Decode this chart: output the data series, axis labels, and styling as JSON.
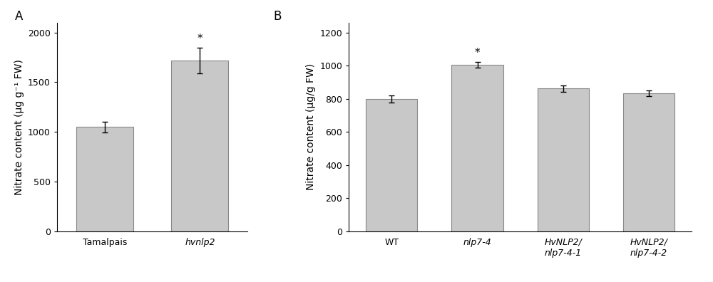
{
  "panel_A": {
    "categories": [
      "Tamalpais",
      "hvnlp2"
    ],
    "values": [
      1050,
      1720
    ],
    "errors": [
      55,
      130
    ],
    "bar_color": "#c8c8c8",
    "bar_edge_color": "#888888",
    "ylabel": "Nitrate content (μg g⁻¹ FW)",
    "ylim": [
      0,
      2100
    ],
    "yticks": [
      0,
      500,
      1000,
      1500,
      2000
    ],
    "label": "A",
    "significant": [
      false,
      true
    ],
    "italic_labels": [
      false,
      true
    ],
    "xlim": [
      -0.5,
      1.5
    ]
  },
  "panel_B": {
    "categories": [
      "WT",
      "nlp7-4",
      "HvNLP2/\nnlp7-4-1",
      "HvNLP2/\nnlp7-4-2"
    ],
    "values": [
      800,
      1005,
      862,
      832
    ],
    "errors": [
      22,
      18,
      20,
      18
    ],
    "bar_color": "#c8c8c8",
    "bar_edge_color": "#888888",
    "ylabel": "Nitrate content (μg/g FW)",
    "ylim": [
      0,
      1260
    ],
    "yticks": [
      0,
      200,
      400,
      600,
      800,
      1000,
      1200
    ],
    "label": "B",
    "significant": [
      false,
      true,
      false,
      false
    ],
    "italic_labels": [
      false,
      true,
      true,
      true
    ],
    "xlim": [
      -0.5,
      3.5
    ]
  },
  "figure_bg": "#ffffff",
  "bar_width": 0.6,
  "fontsize_label": 10,
  "fontsize_tick": 9,
  "fontsize_panel_label": 12,
  "fontsize_star": 11,
  "error_capsize": 3,
  "error_linewidth": 1.0
}
